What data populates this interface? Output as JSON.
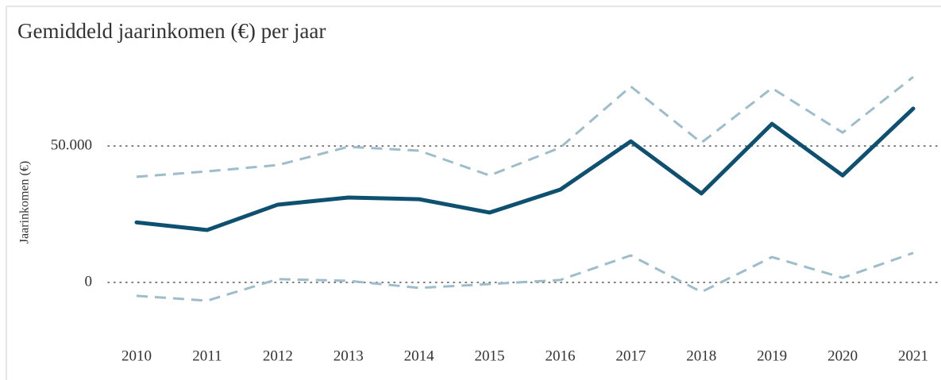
{
  "chart_data": {
    "type": "line",
    "title": "Gemiddeld jaarinkomen (€) per jaar",
    "y_label": "Jaarinkomen (€)",
    "categories": [
      "2010",
      "2011",
      "2012",
      "2013",
      "2014",
      "2015",
      "2016",
      "2017",
      "2018",
      "2019",
      "2020",
      "2021"
    ],
    "series": [
      {
        "color": "#9dbdca",
        "dashed": true,
        "values": [
          38700,
          40700,
          43000,
          49700,
          48300,
          39200,
          49400,
          71800,
          51200,
          71200,
          54900,
          75300
        ]
      },
      {
        "color": "#9dbdca",
        "dashed": true,
        "values": [
          -4900,
          -6700,
          1200,
          600,
          -2000,
          -600,
          900,
          9900,
          -3500,
          9300,
          1700,
          10800
        ]
      },
      {
        "color": "#0d5070",
        "dashed": false,
        "values": [
          22000,
          19200,
          28500,
          31100,
          30500,
          25600,
          34000,
          51700,
          32600,
          58100,
          39200,
          63700
        ]
      }
    ],
    "ylim": [
      -20000,
      80000
    ],
    "yticks": [
      0,
      {
        "value": 50000,
        "label": "50.000"
      }
    ],
    "grid": true
  }
}
